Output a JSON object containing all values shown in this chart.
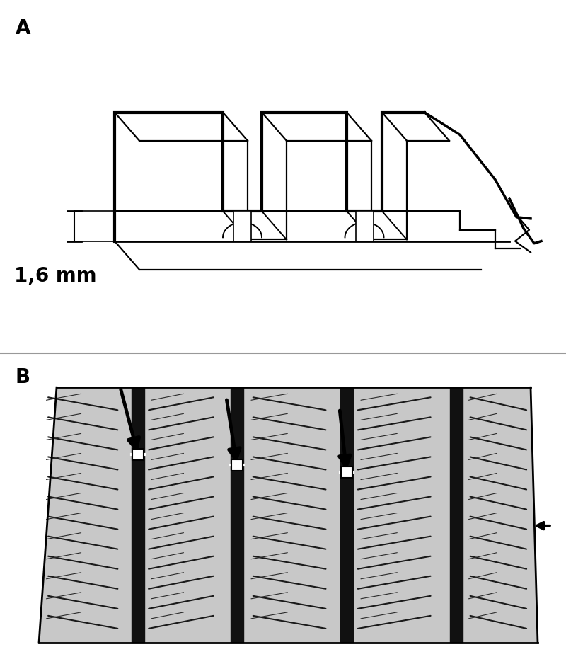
{
  "bg_color": "#ffffff",
  "panel_A_label": "A",
  "panel_B_label": "B",
  "measurement_label": "1,6 mm",
  "label_fontsize": 20,
  "measurement_fontsize": 20,
  "line_color": "#000000",
  "gray_tire": "#c8c8c8",
  "divider_color": "#999999"
}
